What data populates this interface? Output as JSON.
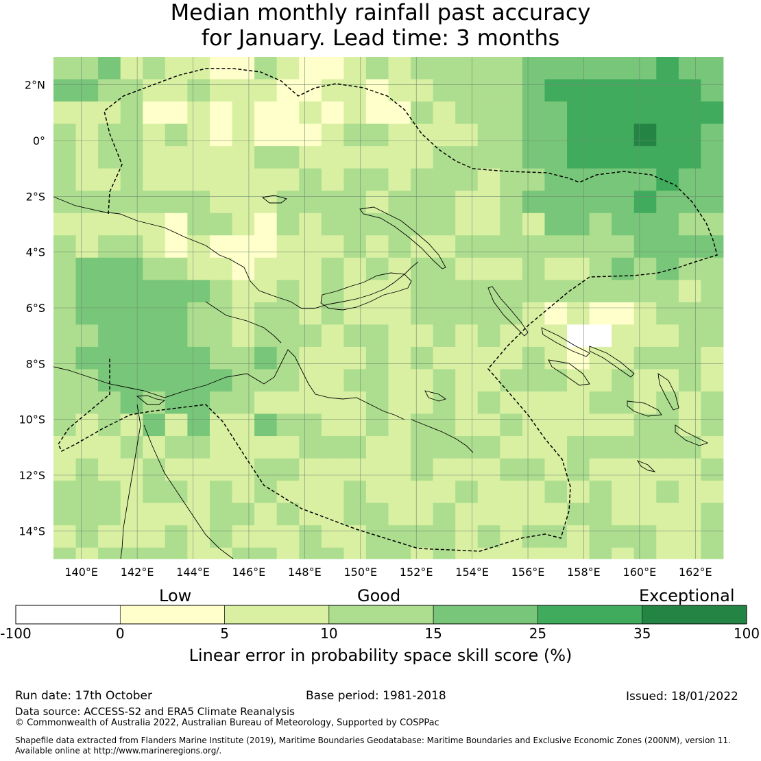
{
  "title": {
    "line1": "Median monthly rainfall past accuracy",
    "line2": "for January. Lead time: 3 months"
  },
  "map": {
    "lon_ticks": [
      "140°E",
      "142°E",
      "144°E",
      "146°E",
      "148°E",
      "150°E",
      "152°E",
      "154°E",
      "156°E",
      "158°E",
      "160°E",
      "162°E"
    ],
    "lat_ticks": [
      "2°N",
      "0°",
      "2°S",
      "4°S",
      "6°S",
      "8°S",
      "10°S",
      "12°S",
      "14°S"
    ],
    "lon_range": [
      139.0,
      163.0
    ],
    "lat_range": [
      -15.0,
      3.0
    ],
    "grid_step_deg": 0.8
  },
  "colorbar": {
    "category_labels": [
      "Low",
      "Good",
      "Exceptional"
    ],
    "ticks": [
      "-100",
      "0",
      "5",
      "10",
      "15",
      "25",
      "35",
      "100"
    ],
    "colors": [
      "#ffffff",
      "#ffffcc",
      "#d9f0a3",
      "#addd8e",
      "#78c679",
      "#41ab5d",
      "#238443"
    ],
    "title": "Linear error in probability space skill score (%)"
  },
  "colors": {
    "grid_line": "#6e8a6e",
    "coastline": "#000000",
    "eez_boundary": "#000000"
  },
  "footer": {
    "run_date": "Run date: 17th October",
    "base_period": "Base period: 1981-2018",
    "issued": "Issued: 18/01/2022",
    "data_source": "Data source: ACCESS-S2 and ERA5 Climate Reanalysis",
    "copyright": "© Commonwealth of Australia 2022, Australian Bureau of Meteorology, Supported by COSPPac",
    "shapefile_line1": "Shapefile data extracted from Flanders Marine Institute (2019), Maritime Boundaries Geodatabase: Maritime Boundaries and Exclusive Economic Zones (200NM), version 11.",
    "shapefile_line2": "Available online at http://www.marineregions.org/."
  }
}
